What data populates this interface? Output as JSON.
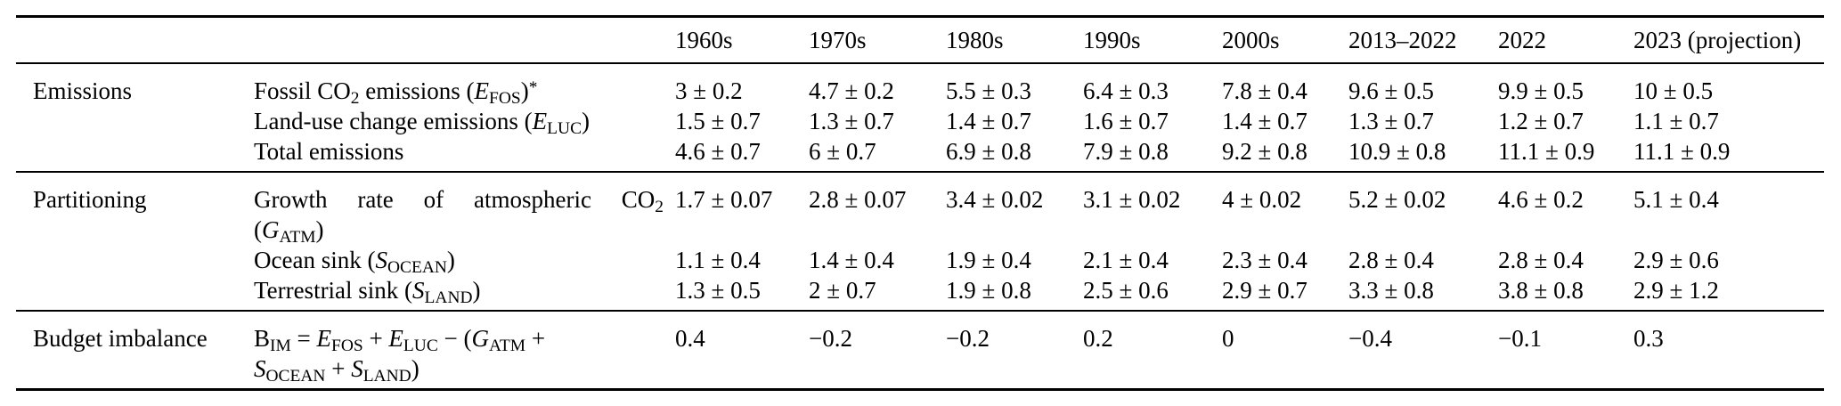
{
  "table": {
    "columns": [
      "1960s",
      "1970s",
      "1980s",
      "1990s",
      "2000s",
      "2013–2022",
      "2022",
      "2023 (projection)"
    ],
    "sections": [
      {
        "category": "Emissions",
        "rows": [
          {
            "label": "Fossil CO~2~ emissions (*E*~FOS~)^*^",
            "values": [
              "3 ± 0.2",
              "4.7 ± 0.2",
              "5.5 ± 0.3",
              "6.4 ± 0.3",
              "7.8 ± 0.4",
              "9.6 ± 0.5",
              "9.9 ± 0.5",
              "10 ± 0.5"
            ]
          },
          {
            "label": "Land-use change emissions (*E*~LUC~)",
            "values": [
              "1.5 ± 0.7",
              "1.3 ± 0.7",
              "1.4 ± 0.7",
              "1.6 ± 0.7",
              "1.4 ± 0.7",
              "1.3 ± 0.7",
              "1.2 ± 0.7",
              "1.1 ± 0.7"
            ]
          },
          {
            "label": "Total emissions",
            "values": [
              "4.6 ± 0.7",
              "6 ± 0.7",
              "6.9 ± 0.8",
              "7.9 ± 0.8",
              "9.2 ± 0.8",
              "10.9 ± 0.8",
              "11.1 ± 0.9",
              "11.1 ± 0.9"
            ]
          }
        ]
      },
      {
        "category": "Partitioning",
        "rows": [
          {
            "label_lines": [
              "Growth rate of atmospheric CO~2~",
              "(*G*~ATM~)"
            ],
            "values": [
              "1.7 ± 0.07",
              "2.8 ± 0.07",
              "3.4 ± 0.02",
              "3.1 ± 0.02",
              "4 ± 0.02",
              "5.2 ± 0.02",
              "4.6 ± 0.2",
              "5.1 ± 0.4"
            ]
          },
          {
            "label": "Ocean sink (*S*~OCEAN~)",
            "values": [
              "1.1 ± 0.4",
              "1.4 ± 0.4",
              "1.9 ± 0.4",
              "2.1 ± 0.4",
              "2.3 ± 0.4",
              "2.8 ± 0.4",
              "2.8 ± 0.4",
              "2.9 ± 0.6"
            ]
          },
          {
            "label": "Terrestrial sink (*S*~LAND~)",
            "values": [
              "1.3 ± 0.5",
              "2 ± 0.7",
              "1.9 ± 0.8",
              "2.5 ± 0.6",
              "2.9 ± 0.7",
              "3.3 ± 0.8",
              "3.8 ± 0.8",
              "2.9 ± 1.2"
            ]
          }
        ]
      },
      {
        "category": "Budget imbalance",
        "rows": [
          {
            "label_lines": [
              "B~IM~ = *E*~FOS~ + *E*~LUC~ − (*G*~ATM~ +",
              "*S*~OCEAN~ + *S*~LAND~)"
            ],
            "values": [
              "0.4",
              "−0.2",
              "−0.2",
              "0.2",
              "0",
              "−0.4",
              "−0.1",
              "0.3"
            ]
          }
        ]
      }
    ]
  }
}
